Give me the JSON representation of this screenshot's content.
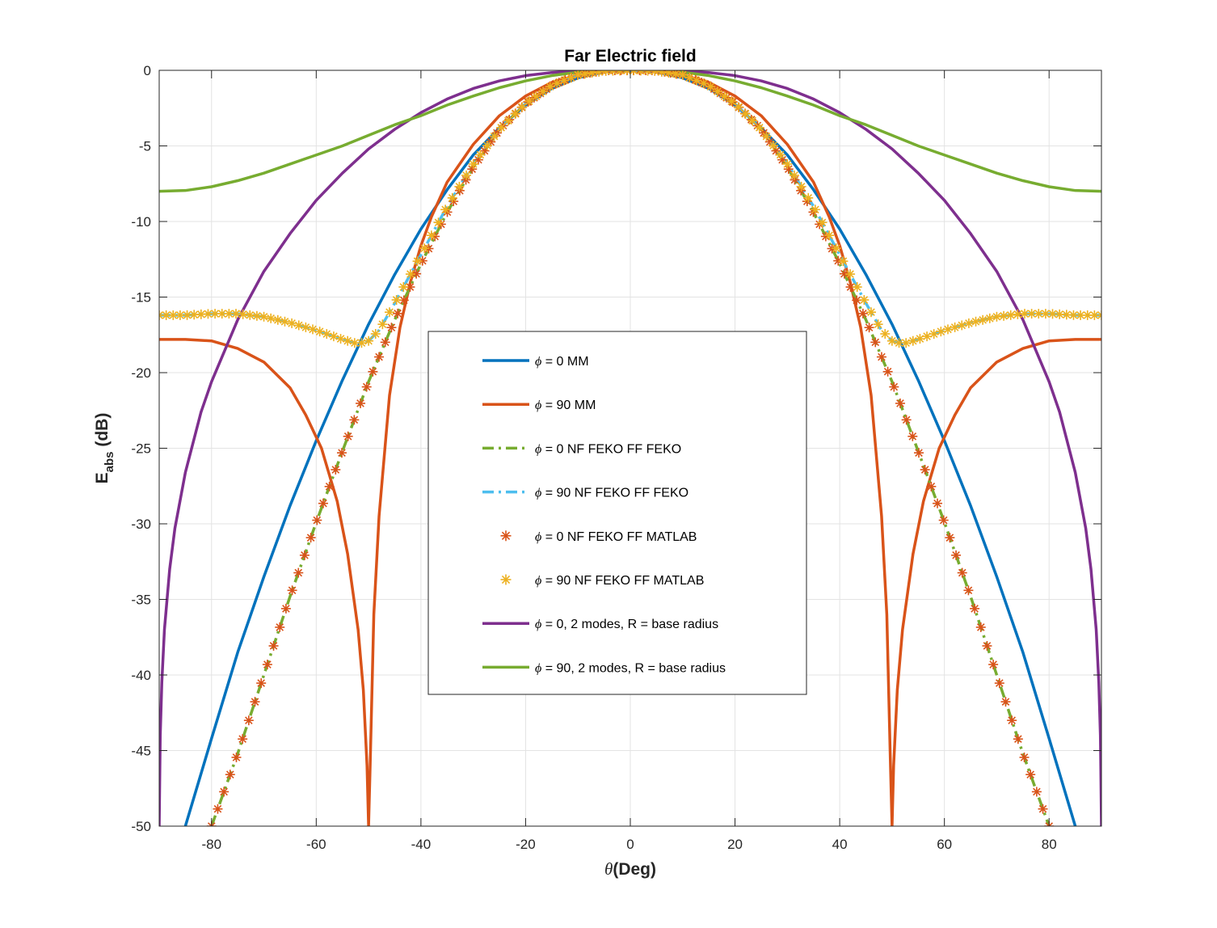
{
  "chart_data": {
    "type": "line",
    "title": "Far Electric field",
    "xlabel_symbol": "θ",
    "xlabel_text": "(Deg)",
    "ylabel_main": "E",
    "ylabel_sub": "abs",
    "ylabel_unit": " (dB)",
    "xlim": [
      -90,
      90
    ],
    "ylim": [
      -50,
      0
    ],
    "xticks": [
      -80,
      -60,
      -40,
      -20,
      0,
      20,
      40,
      60,
      80
    ],
    "yticks": [
      0,
      -5,
      -10,
      -15,
      -20,
      -25,
      -30,
      -35,
      -40,
      -45,
      -50
    ],
    "grid": true,
    "legend_position": "center",
    "series": [
      {
        "name": "= 0 MM",
        "legend_symbol": "ϕ",
        "style": "solid",
        "color": "#0072BD",
        "x": [
          -85,
          -80,
          -75,
          -70,
          -65,
          -60,
          -55,
          -50,
          -45,
          -40,
          -35,
          -30,
          -25,
          -20,
          -15,
          -10,
          -5,
          0,
          5,
          10,
          15,
          20,
          25,
          30,
          35,
          40,
          45,
          50,
          55,
          60,
          65,
          70,
          75,
          80,
          85
        ],
        "y": [
          -50,
          -44.2,
          -38.5,
          -33.5,
          -28.8,
          -24.5,
          -20.5,
          -16.8,
          -13.5,
          -10.5,
          -7.9,
          -5.6,
          -3.8,
          -2.3,
          -1.2,
          -0.5,
          -0.1,
          0,
          -0.1,
          -0.5,
          -1.2,
          -2.3,
          -3.8,
          -5.6,
          -7.9,
          -10.5,
          -13.5,
          -16.8,
          -20.5,
          -24.5,
          -28.8,
          -33.5,
          -38.5,
          -44.2,
          -50
        ]
      },
      {
        "name": "= 90 MM",
        "legend_symbol": "ϕ",
        "style": "solid",
        "color": "#D95319",
        "x": [
          -90,
          -85,
          -80,
          -75,
          -70,
          -65,
          -62,
          -59,
          -56,
          -54,
          -52,
          -51,
          -50.3,
          -50,
          -49.7,
          -49,
          -48,
          -46,
          -44,
          -42,
          -40,
          -38,
          -35,
          -30,
          -25,
          -20,
          -15,
          -10,
          -5,
          0,
          5,
          10,
          15,
          20,
          25,
          30,
          35,
          38,
          40,
          42,
          44,
          46,
          48,
          49,
          49.7,
          50,
          50.3,
          51,
          52,
          54,
          56,
          59,
          62,
          65,
          70,
          75,
          80,
          85,
          90
        ],
        "y": [
          -17.8,
          -17.8,
          -17.9,
          -18.4,
          -19.3,
          -21.0,
          -22.8,
          -25.0,
          -28.5,
          -32.0,
          -37.0,
          -41.0,
          -46.0,
          -50,
          -46.0,
          -36.0,
          -29.5,
          -21.5,
          -17.0,
          -14.0,
          -11.6,
          -9.7,
          -7.4,
          -4.9,
          -3.0,
          -1.7,
          -0.8,
          -0.3,
          -0.05,
          0,
          -0.05,
          -0.3,
          -0.8,
          -1.7,
          -3.0,
          -4.9,
          -7.4,
          -9.7,
          -11.6,
          -14.0,
          -17.0,
          -21.5,
          -29.5,
          -36.0,
          -46.0,
          -50,
          -46.0,
          -41.0,
          -37.0,
          -32.0,
          -28.5,
          -25.0,
          -22.8,
          -21.0,
          -19.3,
          -18.4,
          -17.9,
          -17.8,
          -17.8
        ]
      },
      {
        "name": "= 0 NF FEKO FF FEKO",
        "legend_symbol": "ϕ",
        "style": "dashdot",
        "color": "#77AC30",
        "x": [
          -80,
          -75,
          -70,
          -65,
          -60,
          -55,
          -50,
          -45,
          -40,
          -35,
          -30,
          -25,
          -20,
          -15,
          -10,
          -5,
          0,
          5,
          10,
          15,
          20,
          25,
          30,
          35,
          40,
          45,
          50,
          55,
          60,
          65,
          70,
          75,
          80
        ],
        "y": [
          -50,
          -45.2,
          -40.0,
          -34.8,
          -29.9,
          -25.2,
          -20.6,
          -16.5,
          -12.8,
          -9.4,
          -6.4,
          -3.9,
          -2.2,
          -1.0,
          -0.3,
          0,
          0,
          0,
          -0.3,
          -1.0,
          -2.2,
          -3.9,
          -6.4,
          -9.4,
          -12.8,
          -16.5,
          -20.6,
          -25.2,
          -29.9,
          -34.8,
          -40.0,
          -45.2,
          -50
        ]
      },
      {
        "name": "= 90 NF FEKO FF FEKO",
        "legend_symbol": "ϕ",
        "style": "dashdot",
        "color": "#4DBEEE",
        "x": [
          -90,
          -85,
          -80,
          -75,
          -70,
          -65,
          -60,
          -55,
          -52,
          -50,
          -48,
          -45,
          -40,
          -35,
          -30,
          -25,
          -20,
          -15,
          -10,
          -5,
          0,
          5,
          10,
          15,
          20,
          25,
          30,
          35,
          40,
          45,
          48,
          50,
          52,
          55,
          60,
          65,
          70,
          75,
          80,
          85,
          90
        ],
        "y": [
          -16.2,
          -16.2,
          -16.1,
          -16.1,
          -16.3,
          -16.7,
          -17.2,
          -17.8,
          -18.1,
          -17.9,
          -17.2,
          -15.4,
          -12.2,
          -9.0,
          -6.2,
          -3.9,
          -2.2,
          -1.0,
          -0.3,
          -0.05,
          0,
          -0.05,
          -0.3,
          -1.0,
          -2.2,
          -3.9,
          -6.2,
          -9.0,
          -12.2,
          -15.4,
          -17.2,
          -17.9,
          -18.1,
          -17.8,
          -17.2,
          -16.7,
          -16.3,
          -16.1,
          -16.1,
          -16.2,
          -16.2
        ]
      },
      {
        "name": "= 0 NF FEKO FF MATLAB",
        "legend_symbol": "ϕ",
        "style": "marker",
        "color": "#D95319",
        "x": [
          -80,
          -75,
          -70,
          -65,
          -60,
          -55,
          -50,
          -45,
          -40,
          -35,
          -30,
          -25,
          -20,
          -15,
          -10,
          -5,
          0,
          5,
          10,
          15,
          20,
          25,
          30,
          35,
          40,
          45,
          50,
          55,
          60,
          65,
          70,
          75,
          80
        ],
        "y": [
          -50,
          -45.2,
          -40.0,
          -34.8,
          -29.9,
          -25.2,
          -20.6,
          -16.5,
          -12.8,
          -9.4,
          -6.4,
          -3.9,
          -2.2,
          -1.0,
          -0.3,
          0,
          0,
          0,
          -0.3,
          -1.0,
          -2.2,
          -3.9,
          -6.4,
          -9.4,
          -12.8,
          -16.5,
          -20.6,
          -25.2,
          -29.9,
          -34.8,
          -40.0,
          -45.2,
          -50
        ]
      },
      {
        "name": "= 90 NF FEKO FF MATLAB",
        "legend_symbol": "ϕ",
        "style": "marker",
        "color": "#EDB120",
        "x": [
          -90,
          -85,
          -80,
          -75,
          -70,
          -65,
          -60,
          -55,
          -52,
          -50,
          -48,
          -45,
          -40,
          -35,
          -30,
          -25,
          -20,
          -15,
          -10,
          -5,
          0,
          5,
          10,
          15,
          20,
          25,
          30,
          35,
          40,
          45,
          48,
          50,
          52,
          55,
          60,
          65,
          70,
          75,
          80,
          85,
          90
        ],
        "y": [
          -16.2,
          -16.2,
          -16.1,
          -16.1,
          -16.3,
          -16.7,
          -17.2,
          -17.8,
          -18.1,
          -17.9,
          -17.2,
          -15.4,
          -12.2,
          -9.0,
          -6.2,
          -3.9,
          -2.2,
          -1.0,
          -0.3,
          -0.05,
          0,
          -0.05,
          -0.3,
          -1.0,
          -2.2,
          -3.9,
          -6.2,
          -9.0,
          -12.2,
          -15.4,
          -17.2,
          -17.9,
          -18.1,
          -17.8,
          -17.2,
          -16.7,
          -16.3,
          -16.1,
          -16.1,
          -16.2,
          -16.2
        ]
      },
      {
        "name": "= 0, 2 modes, R = base radius",
        "legend_symbol": "ϕ",
        "style": "solid",
        "color": "#7E2F8E",
        "x": [
          -90,
          -89.8,
          -89.5,
          -89,
          -88,
          -87,
          -85,
          -82,
          -80,
          -75,
          -70,
          -65,
          -60,
          -55,
          -50,
          -45,
          -40,
          -35,
          -30,
          -25,
          -20,
          -15,
          -10,
          -5,
          0,
          5,
          10,
          15,
          20,
          25,
          30,
          35,
          40,
          45,
          50,
          55,
          60,
          65,
          70,
          75,
          80,
          82,
          85,
          87,
          88,
          89,
          89.5,
          89.8,
          90
        ],
        "y": [
          -50,
          -44,
          -40.5,
          -37,
          -33,
          -30.3,
          -26.6,
          -22.6,
          -20.6,
          -16.5,
          -13.3,
          -10.8,
          -8.6,
          -6.8,
          -5.2,
          -3.9,
          -2.8,
          -1.9,
          -1.2,
          -0.7,
          -0.35,
          -0.15,
          -0.05,
          0,
          0,
          0,
          -0.05,
          -0.15,
          -0.35,
          -0.7,
          -1.2,
          -1.9,
          -2.8,
          -3.9,
          -5.2,
          -6.8,
          -8.6,
          -10.8,
          -13.3,
          -16.5,
          -20.6,
          -22.6,
          -26.6,
          -30.3,
          -33,
          -37,
          -40.5,
          -44,
          -50
        ]
      },
      {
        "name": "= 90, 2 modes, R = base radius",
        "legend_symbol": "ϕ",
        "style": "solid",
        "color": "#77AC30",
        "x": [
          -90,
          -85,
          -80,
          -75,
          -70,
          -65,
          -60,
          -55,
          -50,
          -45,
          -40,
          -35,
          -30,
          -25,
          -20,
          -15,
          -10,
          -5,
          0,
          5,
          10,
          15,
          20,
          25,
          30,
          35,
          40,
          45,
          50,
          55,
          60,
          65,
          70,
          75,
          80,
          85,
          90
        ],
        "y": [
          -8.0,
          -7.95,
          -7.7,
          -7.3,
          -6.8,
          -6.2,
          -5.6,
          -5.0,
          -4.3,
          -3.6,
          -3.0,
          -2.3,
          -1.7,
          -1.15,
          -0.7,
          -0.35,
          -0.12,
          -0.02,
          0,
          -0.02,
          -0.12,
          -0.35,
          -0.7,
          -1.15,
          -1.7,
          -2.3,
          -3.0,
          -3.6,
          -4.3,
          -5.0,
          -5.6,
          -6.2,
          -6.8,
          -7.3,
          -7.7,
          -7.95,
          -8.0
        ]
      }
    ]
  }
}
